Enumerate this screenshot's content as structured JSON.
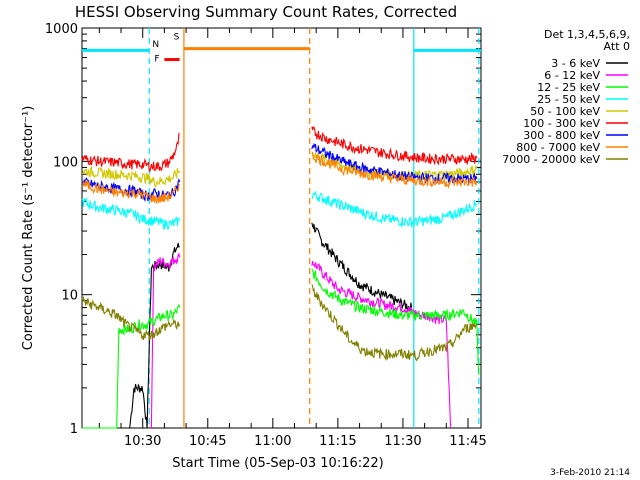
{
  "chart_data": {
    "type": "line",
    "title": "HESSI Observing Summary Count Rates, Corrected",
    "xlabel": "Start Time (05-Sep-03 10:16:22)",
    "ylabel": "Corrected Count Rate (s⁻¹ detector⁻¹)",
    "yscale": "log",
    "ylim": [
      1,
      1000
    ],
    "xlim_minutes": [
      16,
      108
    ],
    "x_ticks": [
      "10:30",
      "10:45",
      "11:00",
      "11:15",
      "11:30",
      "11:45"
    ],
    "y_ticks": [
      "1",
      "10",
      "100",
      "1000"
    ],
    "legend_header": [
      "Det 1,3,4,5,6,9,",
      "Att 0"
    ],
    "legend_position": "right",
    "footer": "3-Feb-2010 21:14",
    "flags": [
      {
        "label": "S",
        "color": "#ff8000",
        "start_min": 39.5,
        "end_min": 68.5,
        "level": 700
      },
      {
        "label": "F",
        "color": "#ff0000",
        "start_min": 35,
        "end_min": 38.5,
        "level": 580
      },
      {
        "label": "N",
        "color": "#00e5ff",
        "segments": [
          [
            16,
            31.5
          ],
          [
            92.5,
            108
          ]
        ],
        "level": 680
      }
    ],
    "vlines": [
      {
        "x_min": 31.5,
        "color": "#00e5ff",
        "dashed": true
      },
      {
        "x_min": 39.5,
        "color": "#ff8000",
        "dashed": false
      },
      {
        "x_min": 68.5,
        "color": "#ff8000",
        "dashed": true
      },
      {
        "x_min": 92.5,
        "color": "#00e5ff",
        "dashed": false
      },
      {
        "x_min": 107.5,
        "color": "#00e5ff",
        "dashed": true
      }
    ],
    "series": [
      {
        "name": "3 - 6 keV",
        "color": "#000000",
        "seg1": [
          [
            16,
            1
          ],
          [
            27,
            1
          ],
          [
            28,
            2
          ],
          [
            30,
            2
          ],
          [
            31,
            1
          ],
          [
            32,
            16
          ],
          [
            34,
            17
          ],
          [
            36,
            16
          ],
          [
            37,
            20
          ],
          [
            38,
            23
          ],
          [
            38.5,
            23
          ]
        ],
        "seg2": [
          [
            69,
            35
          ],
          [
            71,
            26
          ],
          [
            75,
            18
          ],
          [
            80,
            12
          ],
          [
            85,
            10
          ],
          [
            90,
            8.5
          ],
          [
            92,
            8
          ]
        ]
      },
      {
        "name": "6 - 12 keV",
        "color": "#ff00ff",
        "seg1": [
          [
            32,
            1
          ],
          [
            32.5,
            16
          ],
          [
            34,
            18
          ],
          [
            36,
            17
          ],
          [
            37,
            18
          ],
          [
            38,
            19
          ],
          [
            38.5,
            19
          ]
        ],
        "seg2": [
          [
            69,
            18
          ],
          [
            72,
            14
          ],
          [
            75,
            11
          ],
          [
            80,
            9.5
          ],
          [
            85,
            8.5
          ],
          [
            90,
            8
          ],
          [
            92,
            7.5
          ],
          [
            94,
            7
          ],
          [
            96,
            7
          ],
          [
            98,
            6.5
          ],
          [
            100,
            6.5
          ],
          [
            101,
            1
          ]
        ]
      },
      {
        "name": "12 - 25 keV",
        "color": "#00ff00",
        "seg1": [
          [
            16,
            1
          ],
          [
            24,
            1
          ],
          [
            24.5,
            5.5
          ],
          [
            27,
            5.5
          ],
          [
            29,
            6
          ],
          [
            31,
            6
          ],
          [
            33,
            6.5
          ],
          [
            35,
            7
          ],
          [
            37,
            7
          ],
          [
            38.5,
            8
          ]
        ],
        "seg2": [
          [
            69,
            15
          ],
          [
            72,
            11
          ],
          [
            76,
            9
          ],
          [
            80,
            8
          ],
          [
            85,
            7.5
          ],
          [
            90,
            7
          ],
          [
            95,
            7
          ],
          [
            100,
            7
          ],
          [
            104,
            7.5
          ],
          [
            107,
            6
          ],
          [
            107.5,
            2.5
          ]
        ]
      },
      {
        "name": "25 - 50 keV",
        "color": "#00ffff",
        "seg1": [
          [
            16,
            50
          ],
          [
            20,
            45
          ],
          [
            24,
            43
          ],
          [
            28,
            40
          ],
          [
            30,
            37
          ],
          [
            32,
            36
          ],
          [
            35,
            34
          ],
          [
            37,
            34
          ],
          [
            38.5,
            36
          ]
        ],
        "seg2": [
          [
            69,
            57
          ],
          [
            75,
            48
          ],
          [
            80,
            42
          ],
          [
            86,
            37
          ],
          [
            92,
            35
          ],
          [
            96,
            36
          ],
          [
            100,
            38
          ],
          [
            104,
            43
          ],
          [
            107,
            48
          ]
        ]
      },
      {
        "name": "50 - 100 keV",
        "color": "#d2c800",
        "seg1": [
          [
            16,
            85
          ],
          [
            20,
            82
          ],
          [
            24,
            80
          ],
          [
            28,
            78
          ],
          [
            31,
            75
          ],
          [
            33,
            70
          ],
          [
            35,
            72
          ],
          [
            37,
            76
          ],
          [
            38.5,
            85
          ]
        ],
        "seg2": [
          [
            69,
            115
          ],
          [
            75,
            95
          ],
          [
            80,
            85
          ],
          [
            86,
            80
          ],
          [
            92,
            78
          ],
          [
            96,
            79
          ],
          [
            100,
            80
          ],
          [
            104,
            82
          ],
          [
            107,
            88
          ]
        ]
      },
      {
        "name": "100 - 300 keV",
        "color": "#ff0000",
        "seg1": [
          [
            16,
            105
          ],
          [
            20,
            100
          ],
          [
            24,
            98
          ],
          [
            28,
            95
          ],
          [
            30,
            95
          ],
          [
            32,
            92
          ],
          [
            34,
            92
          ],
          [
            36,
            98
          ],
          [
            37,
            110
          ],
          [
            38,
            130
          ],
          [
            38.5,
            160
          ]
        ],
        "seg2": [
          [
            69,
            170
          ],
          [
            72,
            150
          ],
          [
            76,
            135
          ],
          [
            80,
            125
          ],
          [
            86,
            115
          ],
          [
            92,
            108
          ],
          [
            96,
            105
          ],
          [
            100,
            105
          ],
          [
            104,
            104
          ],
          [
            107,
            105
          ]
        ]
      },
      {
        "name": "300 - 800 keV",
        "color": "#0000ff",
        "seg1": [
          [
            16,
            70
          ],
          [
            20,
            65
          ],
          [
            24,
            62
          ],
          [
            28,
            60
          ],
          [
            31,
            55
          ],
          [
            33,
            58
          ],
          [
            35,
            55
          ],
          [
            37,
            58
          ],
          [
            38.5,
            70
          ]
        ],
        "seg2": [
          [
            69,
            130
          ],
          [
            72,
            115
          ],
          [
            76,
            100
          ],
          [
            80,
            90
          ],
          [
            86,
            82
          ],
          [
            92,
            76
          ],
          [
            96,
            75
          ],
          [
            100,
            75
          ],
          [
            104,
            74
          ],
          [
            107,
            74
          ]
        ]
      },
      {
        "name": "800 - 7000 keV",
        "color": "#ff8000",
        "seg1": [
          [
            16,
            68
          ],
          [
            20,
            62
          ],
          [
            24,
            58
          ],
          [
            28,
            58
          ],
          [
            31,
            55
          ],
          [
            33,
            52
          ],
          [
            35,
            53
          ],
          [
            37,
            56
          ],
          [
            38.5,
            68
          ]
        ],
        "seg2": [
          [
            69,
            110
          ],
          [
            72,
            100
          ],
          [
            76,
            88
          ],
          [
            80,
            82
          ],
          [
            86,
            76
          ],
          [
            92,
            72
          ],
          [
            96,
            71
          ],
          [
            100,
            70
          ],
          [
            104,
            70
          ],
          [
            107,
            70
          ]
        ]
      },
      {
        "name": "7000 - 20000 keV",
        "color": "#808000",
        "seg1": [
          [
            16,
            9
          ],
          [
            20,
            8
          ],
          [
            24,
            7
          ],
          [
            26,
            6
          ],
          [
            28,
            5.5
          ],
          [
            30,
            5
          ],
          [
            32,
            5
          ],
          [
            34,
            5.5
          ],
          [
            36,
            6
          ],
          [
            38.5,
            6
          ]
        ],
        "seg2": [
          [
            69,
            11
          ],
          [
            72,
            8
          ],
          [
            75,
            6
          ],
          [
            78,
            4.5
          ],
          [
            81,
            3.8
          ],
          [
            85,
            3.6
          ],
          [
            90,
            3.6
          ],
          [
            93,
            3.5
          ],
          [
            96,
            3.8
          ],
          [
            100,
            4
          ],
          [
            102,
            4.5
          ],
          [
            104,
            5.5
          ],
          [
            107,
            6
          ]
        ]
      }
    ]
  }
}
